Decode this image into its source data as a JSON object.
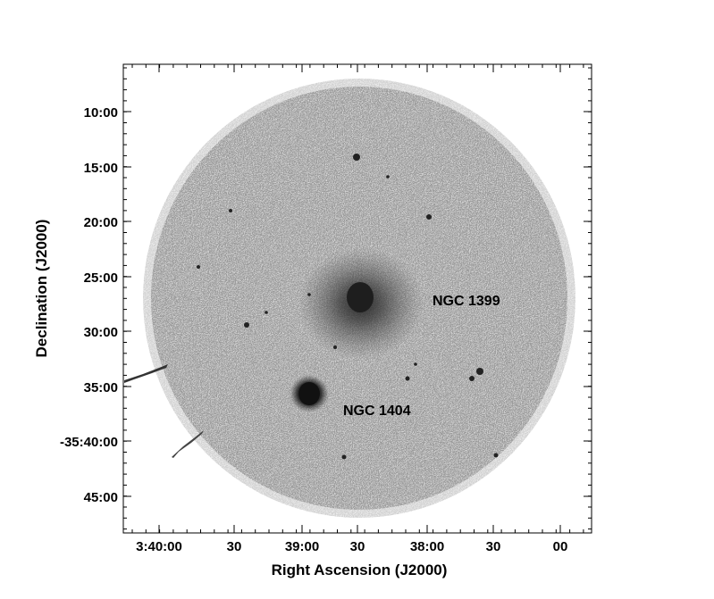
{
  "figure": {
    "xlabel": "Right Ascension (J2000)",
    "ylabel": "Declination (J2000)",
    "x_ticks": [
      "3:40:00",
      "30",
      "39:00",
      "30",
      "38:00",
      "30",
      "00"
    ],
    "y_ticks": [
      "10:00",
      "15:00",
      "20:00",
      "25:00",
      "30:00",
      "35:00",
      "-35:40:00",
      "45:00"
    ],
    "annotations": [
      {
        "label": "NGC 1399"
      },
      {
        "label": "NGC 1404"
      }
    ],
    "colors": {
      "background": "#ffffff",
      "emission": "#4a4a4a",
      "ink": "#000000"
    }
  }
}
